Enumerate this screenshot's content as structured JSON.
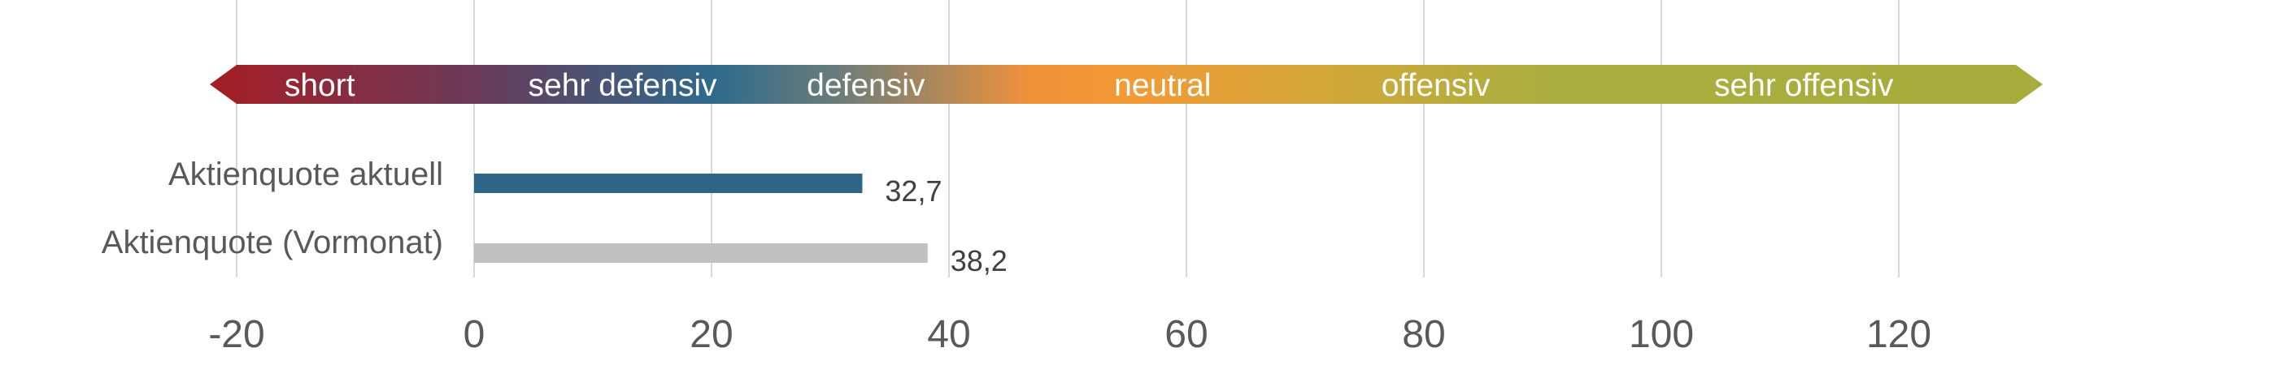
{
  "chart_data": {
    "type": "bar",
    "orientation": "horizontal",
    "categories": [
      "Aktienquote aktuell",
      "Aktienquote (Vormonat)"
    ],
    "series": [
      {
        "values": [
          32.7,
          38.2
        ],
        "value_labels": [
          "32,7",
          "38,2"
        ]
      }
    ],
    "bar_colors": [
      "#2e6587",
      "#c0c0c0"
    ],
    "xlim": [
      -20,
      130
    ],
    "xticks": [
      -20,
      0,
      20,
      40,
      60,
      80,
      100,
      120
    ],
    "xtick_labels": [
      "-20",
      "0",
      "20",
      "40",
      "60",
      "80",
      "100",
      "120"
    ],
    "grid": true,
    "title": "",
    "xlabel": "",
    "ylabel": "",
    "scale": {
      "labels": [
        "short",
        "sehr defensiv",
        "defensiv",
        "neutral",
        "offensiv",
        "sehr offensiv"
      ],
      "label_positions": [
        -13,
        12.5,
        33,
        58,
        81,
        112
      ],
      "gradient_stops": [
        {
          "value": -20,
          "color": "#a0202a"
        },
        {
          "value": 0,
          "color": "#6a3a58"
        },
        {
          "value": 20,
          "color": "#2e6a8c"
        },
        {
          "value": 30,
          "color": "#667c7c"
        },
        {
          "value": 47,
          "color": "#f0923a"
        },
        {
          "value": 55,
          "color": "#f29a36"
        },
        {
          "value": 72,
          "color": "#d2a83a"
        },
        {
          "value": 90,
          "color": "#aaae3e"
        },
        {
          "value": 130,
          "color": "#a6ad3d"
        }
      ]
    }
  }
}
